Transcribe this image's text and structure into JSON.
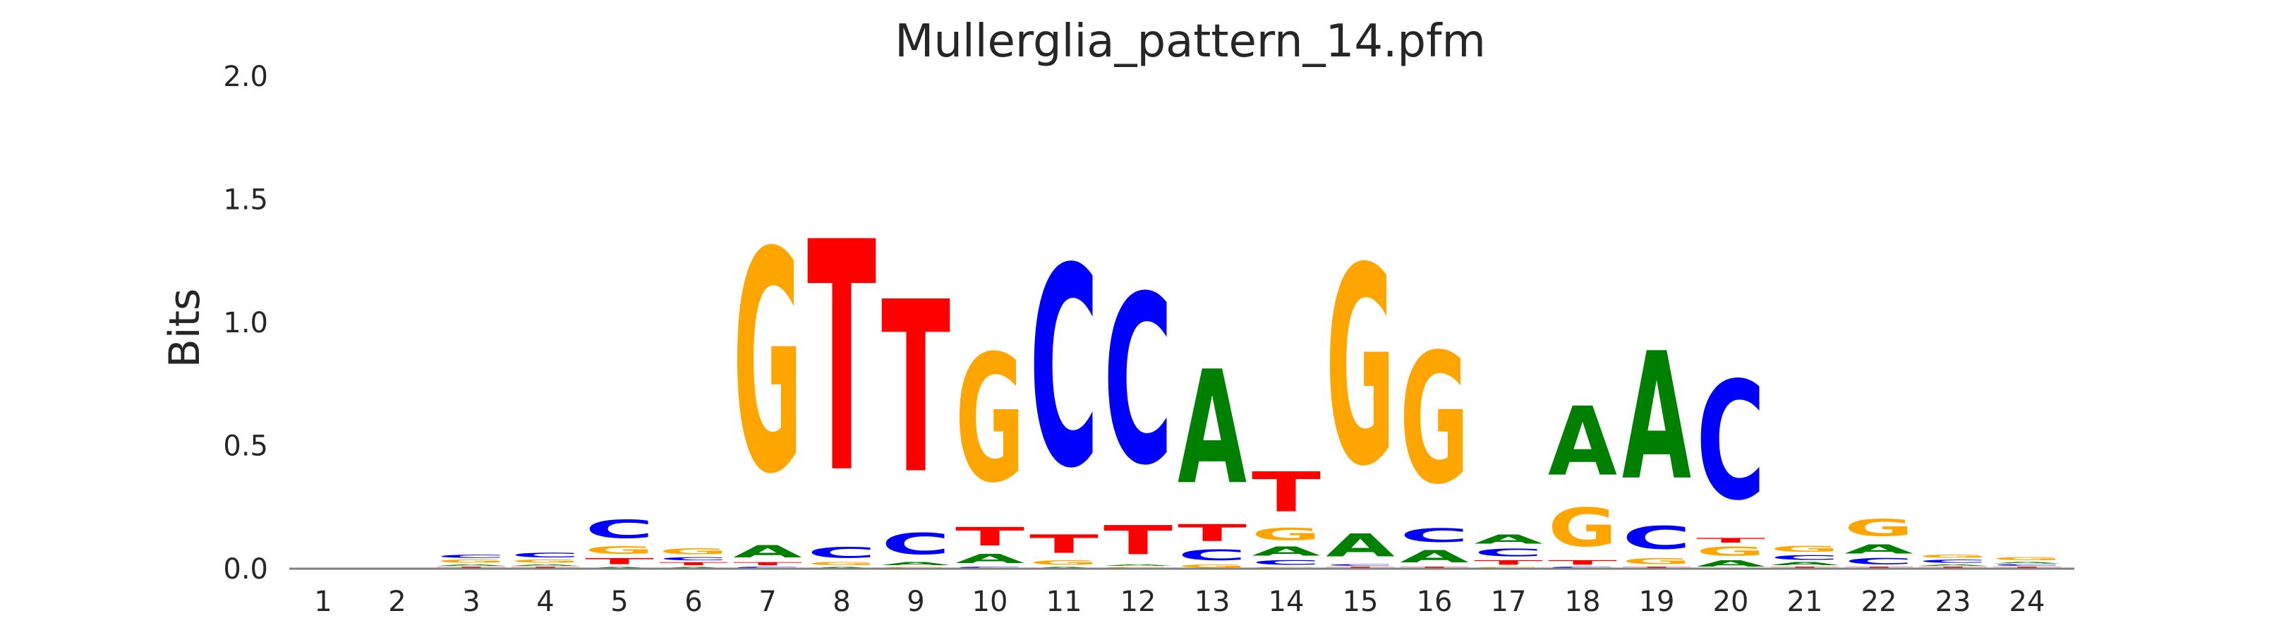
{
  "chart_data": {
    "type": "sequence-logo",
    "title": "Mullerglia_pattern_14.pfm",
    "xlabel": "",
    "ylabel": "Bits",
    "ylim": [
      0,
      2
    ],
    "yticks": [
      "0.0",
      "0.5",
      "1.0",
      "1.5",
      "2.0"
    ],
    "grid": false,
    "colors": {
      "A": "#008000",
      "C": "#0000ff",
      "G": "#ffa500",
      "T": "#ff0000"
    },
    "positions": [
      {
        "label": "1",
        "stack": []
      },
      {
        "label": "2",
        "stack": []
      },
      {
        "label": "3",
        "stack": [
          [
            "T",
            0.01
          ],
          [
            "A",
            0.01
          ],
          [
            "G",
            0.02
          ],
          [
            "C",
            0.02
          ]
        ]
      },
      {
        "label": "4",
        "stack": [
          [
            "T",
            0.01
          ],
          [
            "A",
            0.01
          ],
          [
            "G",
            0.02
          ],
          [
            "C",
            0.03
          ]
        ]
      },
      {
        "label": "5",
        "stack": [
          [
            "A",
            0.01
          ],
          [
            "T",
            0.04
          ],
          [
            "G",
            0.05
          ],
          [
            "C",
            0.12
          ]
        ]
      },
      {
        "label": "6",
        "stack": [
          [
            "A",
            0.01
          ],
          [
            "T",
            0.02
          ],
          [
            "C",
            0.02
          ],
          [
            "G",
            0.04
          ]
        ]
      },
      {
        "label": "7",
        "stack": [
          [
            "C",
            0.01
          ],
          [
            "T",
            0.02
          ],
          [
            "A",
            0.08
          ],
          [
            "G",
            1.44
          ]
        ]
      },
      {
        "label": "8",
        "stack": [
          [
            "A",
            0.01
          ],
          [
            "G",
            0.02
          ],
          [
            "C",
            0.07
          ],
          [
            "T",
            1.5
          ]
        ]
      },
      {
        "label": "9",
        "stack": [
          [
            "G",
            0.01
          ],
          [
            "A",
            0.02
          ],
          [
            "C",
            0.14
          ],
          [
            "T",
            1.12
          ]
        ]
      },
      {
        "label": "10",
        "stack": [
          [
            "C",
            0.01
          ],
          [
            "A",
            0.06
          ],
          [
            "T",
            0.12
          ],
          [
            "G",
            0.83
          ]
        ]
      },
      {
        "label": "11",
        "stack": [
          [
            "A",
            0.01
          ],
          [
            "G",
            0.03
          ],
          [
            "T",
            0.12
          ],
          [
            "C",
            1.3
          ]
        ]
      },
      {
        "label": "12",
        "stack": [
          [
            "G",
            0.01
          ],
          [
            "A",
            0.01
          ],
          [
            "T",
            0.19
          ],
          [
            "C",
            1.1
          ]
        ]
      },
      {
        "label": "13",
        "stack": [
          [
            "G",
            0.02
          ],
          [
            "C",
            0.07
          ],
          [
            "T",
            0.11
          ],
          [
            "A",
            0.74
          ]
        ]
      },
      {
        "label": "14",
        "stack": [
          [
            "G",
            0.01
          ],
          [
            "C",
            0.03
          ],
          [
            "A",
            0.06
          ],
          [
            "G",
            0.08
          ],
          [
            "T",
            0.26
          ]
        ]
      },
      {
        "label": "15",
        "stack": [
          [
            "T",
            0.01
          ],
          [
            "C",
            0.01
          ],
          [
            "A",
            0.15
          ],
          [
            "G",
            1.29
          ]
        ]
      },
      {
        "label": "16",
        "stack": [
          [
            "T",
            0.01
          ],
          [
            "A",
            0.08
          ],
          [
            "C",
            0.09
          ],
          [
            "G",
            0.85
          ]
        ]
      },
      {
        "label": "17",
        "stack": [
          [
            "G",
            0.01
          ],
          [
            "T",
            0.03
          ],
          [
            "C",
            0.05
          ],
          [
            "A",
            0.06
          ]
        ]
      },
      {
        "label": "18",
        "stack": [
          [
            "C",
            0.01
          ],
          [
            "T",
            0.03
          ],
          [
            "G",
            0.25
          ],
          [
            "A",
            0.45
          ]
        ]
      },
      {
        "label": "19",
        "stack": [
          [
            "T",
            0.01
          ],
          [
            "G",
            0.04
          ],
          [
            "C",
            0.15
          ],
          [
            "A",
            0.83
          ]
        ]
      },
      {
        "label": "20",
        "stack": [
          [
            "A",
            0.04
          ],
          [
            "G",
            0.06
          ],
          [
            "T",
            0.03
          ],
          [
            "C",
            0.77
          ]
        ]
      },
      {
        "label": "21",
        "stack": [
          [
            "T",
            0.01
          ],
          [
            "A",
            0.02
          ],
          [
            "C",
            0.03
          ],
          [
            "G",
            0.04
          ]
        ]
      },
      {
        "label": "22",
        "stack": [
          [
            "T",
            0.01
          ],
          [
            "C",
            0.04
          ],
          [
            "A",
            0.06
          ],
          [
            "G",
            0.11
          ]
        ]
      },
      {
        "label": "23",
        "stack": [
          [
            "T",
            0.01
          ],
          [
            "A",
            0.01
          ],
          [
            "C",
            0.02
          ],
          [
            "G",
            0.02
          ]
        ]
      },
      {
        "label": "24",
        "stack": [
          [
            "T",
            0.01
          ],
          [
            "C",
            0.01
          ],
          [
            "A",
            0.01
          ],
          [
            "G",
            0.02
          ]
        ]
      }
    ]
  }
}
